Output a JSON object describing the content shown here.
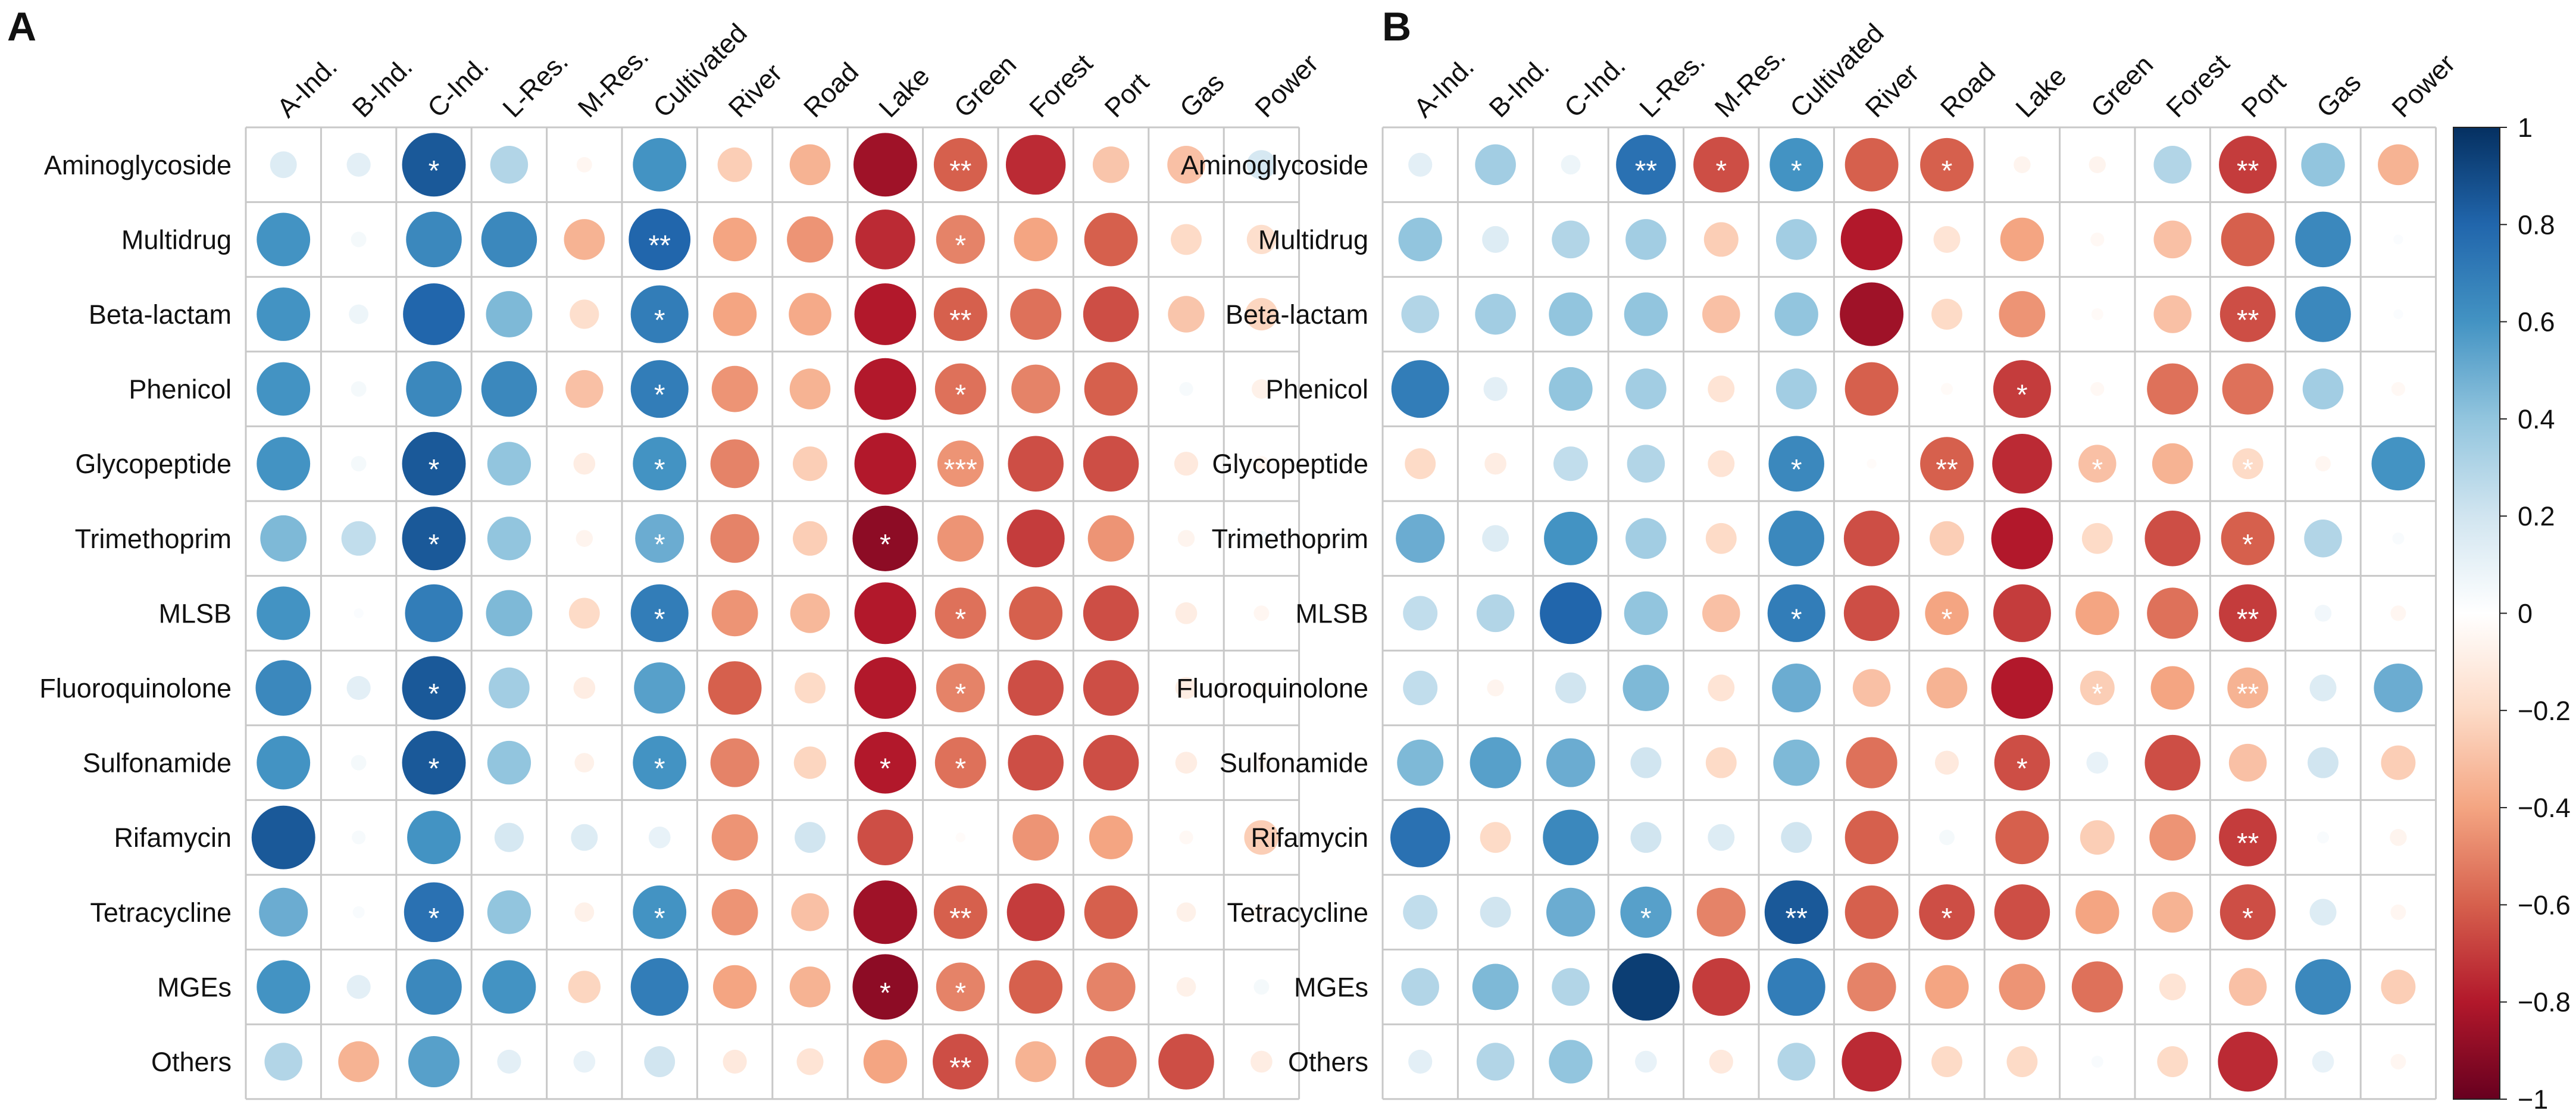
{
  "colors": {
    "scale": [
      [
        -1.0,
        "#67001f"
      ],
      [
        -0.8,
        "#b2182b"
      ],
      [
        -0.6,
        "#d6604d"
      ],
      [
        -0.4,
        "#f4a582"
      ],
      [
        -0.2,
        "#fddbc7"
      ],
      [
        0.0,
        "#ffffff"
      ],
      [
        0.2,
        "#d1e5f0"
      ],
      [
        0.4,
        "#92c5de"
      ],
      [
        0.6,
        "#4393c3"
      ],
      [
        0.8,
        "#2166ac"
      ],
      [
        1.0,
        "#053061"
      ]
    ],
    "grid": "#c8c8c8",
    "star": "#ffffff"
  },
  "chart_data": [
    {
      "type": "heatmap",
      "style": "circle-correlogram",
      "panel_label": "A",
      "rows": [
        "Aminoglycoside",
        "Multidrug",
        "Beta-lactam",
        "Phenicol",
        "Glycopeptide",
        "Trimethoprim",
        "MLSB",
        "Fluoroquinolone",
        "Sulfonamide",
        "Rifamycin",
        "Tetracycline",
        "MGEs",
        "Others"
      ],
      "columns": [
        "A-Ind.",
        "B-Ind.",
        "C-Ind.",
        "L-Res.",
        "M-Res.",
        "Cultivated",
        "River",
        "Road",
        "Lake",
        "Green",
        "Forest",
        "Port",
        "Gas",
        "Power"
      ],
      "values": [
        [
          0.15,
          0.12,
          0.85,
          0.3,
          -0.05,
          0.6,
          -0.25,
          -0.35,
          -0.85,
          -0.6,
          -0.75,
          -0.28,
          -0.3,
          0.18
        ],
        [
          0.6,
          0.05,
          0.65,
          0.65,
          -0.35,
          0.8,
          -0.4,
          -0.45,
          -0.75,
          -0.5,
          -0.4,
          -0.6,
          -0.2,
          -0.18
        ],
        [
          0.6,
          0.08,
          0.8,
          0.45,
          -0.18,
          0.7,
          -0.4,
          -0.38,
          -0.8,
          -0.6,
          -0.55,
          -0.65,
          -0.28,
          -0.22
        ],
        [
          0.6,
          0.05,
          0.65,
          0.65,
          -0.3,
          0.7,
          -0.45,
          -0.35,
          -0.8,
          -0.55,
          -0.5,
          -0.6,
          0.04,
          -0.08
        ],
        [
          0.6,
          0.05,
          0.85,
          0.4,
          -0.1,
          0.6,
          -0.5,
          -0.25,
          -0.8,
          -0.45,
          -0.65,
          -0.65,
          -0.12,
          -0.05
        ],
        [
          0.45,
          0.25,
          0.85,
          0.4,
          -0.06,
          0.5,
          -0.5,
          -0.25,
          -0.9,
          -0.45,
          -0.7,
          -0.45,
          -0.06,
          0.05
        ],
        [
          0.6,
          0.02,
          0.7,
          0.45,
          -0.2,
          0.7,
          -0.45,
          -0.33,
          -0.8,
          -0.55,
          -0.6,
          -0.65,
          -0.1,
          -0.05
        ],
        [
          0.65,
          0.12,
          0.85,
          0.35,
          -0.1,
          0.55,
          -0.6,
          -0.2,
          -0.8,
          -0.5,
          -0.65,
          -0.65,
          -0.1,
          -0.05
        ],
        [
          0.6,
          0.05,
          0.85,
          0.4,
          -0.08,
          0.6,
          -0.5,
          -0.22,
          -0.8,
          -0.55,
          -0.65,
          -0.65,
          -0.1,
          -0.05
        ],
        [
          0.85,
          0.04,
          0.6,
          0.18,
          0.15,
          0.1,
          -0.45,
          0.2,
          -0.65,
          -0.02,
          -0.45,
          -0.4,
          -0.04,
          -0.25
        ],
        [
          0.5,
          0.03,
          0.75,
          0.4,
          -0.08,
          0.6,
          -0.45,
          -0.3,
          -0.85,
          -0.6,
          -0.7,
          -0.6,
          -0.08,
          -0.05
        ],
        [
          0.6,
          0.12,
          0.65,
          0.6,
          -0.22,
          0.7,
          -0.4,
          -0.35,
          -0.9,
          -0.5,
          -0.6,
          -0.5,
          -0.08,
          0.05
        ],
        [
          0.3,
          -0.35,
          0.55,
          0.12,
          0.1,
          0.2,
          -0.12,
          -0.15,
          -0.4,
          -0.65,
          -0.35,
          -0.55,
          -0.65,
          -0.1
        ]
      ],
      "significance": [
        [
          "",
          "",
          "*",
          "",
          "",
          "",
          "",
          "",
          "",
          "**",
          "",
          "",
          "",
          ""
        ],
        [
          "",
          "",
          "",
          "",
          "",
          "**",
          "",
          "",
          "",
          "*",
          "",
          "",
          "",
          ""
        ],
        [
          "",
          "",
          "",
          "",
          "",
          "*",
          "",
          "",
          "",
          "**",
          "",
          "",
          "",
          ""
        ],
        [
          "",
          "",
          "",
          "",
          "",
          "*",
          "",
          "",
          "",
          "*",
          "",
          "",
          "",
          ""
        ],
        [
          "",
          "",
          "*",
          "",
          "",
          "*",
          "",
          "",
          "",
          "***",
          "",
          "",
          "",
          ""
        ],
        [
          "",
          "",
          "*",
          "",
          "",
          "*",
          "",
          "",
          "*",
          "",
          "",
          "",
          "",
          ""
        ],
        [
          "",
          "",
          "",
          "",
          "",
          "*",
          "",
          "",
          "",
          "*",
          "",
          "",
          "",
          ""
        ],
        [
          "",
          "",
          "*",
          "",
          "",
          "",
          "",
          "",
          "",
          "*",
          "",
          "",
          "",
          ""
        ],
        [
          "",
          "",
          "*",
          "",
          "",
          "*",
          "",
          "",
          "*",
          "*",
          "",
          "",
          "",
          ""
        ],
        [
          "",
          "",
          "",
          "",
          "",
          "",
          "",
          "",
          "",
          "",
          "",
          "",
          "",
          ""
        ],
        [
          "",
          "",
          "*",
          "",
          "",
          "*",
          "",
          "",
          "",
          "**",
          "",
          "",
          "",
          ""
        ],
        [
          "",
          "",
          "",
          "",
          "",
          "",
          "",
          "",
          "*",
          "*",
          "",
          "",
          "",
          ""
        ],
        [
          "",
          "",
          "",
          "",
          "",
          "",
          "",
          "",
          "",
          "**",
          "",
          "",
          "",
          ""
        ]
      ]
    },
    {
      "type": "heatmap",
      "style": "circle-correlogram",
      "panel_label": "B",
      "rows": [
        "Aminoglycoside",
        "Multidrug",
        "Beta-lactam",
        "Phenicol",
        "Glycopeptide",
        "Trimethoprim",
        "MLSB",
        "Fluoroquinolone",
        "Sulfonamide",
        "Rifamycin",
        "Tetracycline",
        "MGEs",
        "Others"
      ],
      "columns": [
        "A-Ind.",
        "B-Ind.",
        "C-Ind.",
        "L-Res.",
        "M-Res.",
        "Cultivated",
        "River",
        "Road",
        "Lake",
        "Green",
        "Forest",
        "Port",
        "Gas",
        "Power"
      ],
      "values": [
        [
          0.12,
          0.35,
          0.08,
          0.75,
          -0.65,
          0.6,
          -0.6,
          -0.6,
          -0.06,
          -0.06,
          0.3,
          -0.7,
          0.4,
          -0.35
        ],
        [
          0.4,
          0.15,
          0.3,
          0.35,
          -0.25,
          0.35,
          -0.8,
          -0.15,
          -0.4,
          -0.04,
          -0.3,
          -0.6,
          0.65,
          0.02
        ],
        [
          0.3,
          0.35,
          0.4,
          0.4,
          -0.3,
          0.4,
          -0.85,
          -0.2,
          -0.45,
          -0.03,
          -0.3,
          -0.65,
          0.65,
          0.02
        ],
        [
          0.7,
          0.12,
          0.4,
          0.35,
          -0.15,
          0.35,
          -0.6,
          -0.03,
          -0.7,
          -0.04,
          -0.55,
          -0.55,
          0.35,
          -0.04
        ],
        [
          -0.2,
          -0.1,
          0.25,
          0.3,
          -0.15,
          0.65,
          -0.02,
          -0.6,
          -0.75,
          -0.3,
          -0.35,
          -0.2,
          -0.05,
          0.6
        ],
        [
          0.5,
          0.15,
          0.6,
          0.35,
          -0.2,
          0.65,
          -0.65,
          -0.25,
          -0.8,
          -0.2,
          -0.65,
          -0.6,
          0.3,
          0.03
        ],
        [
          0.25,
          0.3,
          0.8,
          0.4,
          -0.3,
          0.7,
          -0.65,
          -0.4,
          -0.7,
          -0.4,
          -0.55,
          -0.7,
          0.06,
          -0.05
        ],
        [
          0.25,
          -0.06,
          0.2,
          0.45,
          -0.15,
          0.5,
          -0.3,
          -0.35,
          -0.8,
          -0.25,
          -0.4,
          -0.35,
          0.15,
          0.5
        ],
        [
          0.45,
          0.55,
          0.5,
          0.2,
          -0.2,
          0.45,
          -0.55,
          -0.12,
          -0.65,
          0.1,
          -0.65,
          -0.3,
          0.2,
          -0.25
        ],
        [
          0.75,
          -0.2,
          0.65,
          0.2,
          0.15,
          0.2,
          -0.6,
          0.05,
          -0.6,
          -0.25,
          -0.45,
          -0.7,
          0.03,
          -0.06
        ],
        [
          0.25,
          0.2,
          0.5,
          0.55,
          -0.5,
          0.85,
          -0.6,
          -0.65,
          -0.65,
          -0.4,
          -0.35,
          -0.65,
          0.15,
          -0.05
        ],
        [
          0.3,
          0.45,
          0.3,
          0.95,
          -0.7,
          0.7,
          -0.5,
          -0.4,
          -0.45,
          -0.55,
          -0.15,
          -0.3,
          0.65,
          -0.25
        ],
        [
          0.12,
          0.3,
          0.4,
          0.1,
          -0.12,
          0.3,
          -0.75,
          -0.2,
          -0.2,
          0.03,
          -0.2,
          -0.75,
          0.1,
          -0.05
        ]
      ],
      "significance": [
        [
          "",
          "",
          "",
          "**",
          "*",
          "*",
          "",
          "*",
          "",
          "",
          "",
          "**",
          "",
          ""
        ],
        [
          "",
          "",
          "",
          "",
          "",
          "",
          "",
          "",
          "",
          "",
          "",
          "",
          "",
          ""
        ],
        [
          "",
          "",
          "",
          "",
          "",
          "",
          "",
          "",
          "",
          "",
          "",
          "**",
          "",
          ""
        ],
        [
          "",
          "",
          "",
          "",
          "",
          "",
          "",
          "",
          "*",
          "",
          "",
          "",
          "",
          ""
        ],
        [
          "",
          "",
          "",
          "",
          "",
          "*",
          "",
          "**",
          "",
          "*",
          "",
          "*",
          "",
          ""
        ],
        [
          "",
          "",
          "",
          "",
          "",
          "",
          "",
          "",
          "",
          "",
          "",
          "*",
          "",
          ""
        ],
        [
          "",
          "",
          "",
          "",
          "",
          "*",
          "",
          "*",
          "",
          "",
          "",
          "**",
          "",
          ""
        ],
        [
          "",
          "",
          "",
          "",
          "",
          "",
          "",
          "",
          "",
          "*",
          "",
          "**",
          "",
          ""
        ],
        [
          "",
          "",
          "",
          "",
          "",
          "",
          "",
          "",
          "*",
          "",
          "",
          "",
          "",
          ""
        ],
        [
          "",
          "",
          "",
          "",
          "",
          "",
          "",
          "",
          "",
          "",
          "",
          "**",
          "",
          ""
        ],
        [
          "",
          "",
          "",
          "*",
          "",
          "**",
          "",
          "*",
          "",
          "",
          "",
          "*",
          "",
          ""
        ],
        [
          "",
          "",
          "",
          "",
          "",
          "",
          "",
          "",
          "",
          "",
          "",
          "",
          "",
          ""
        ],
        [
          "",
          "",
          "",
          "",
          "",
          "",
          "",
          "",
          "",
          "",
          "",
          "",
          "",
          ""
        ]
      ]
    }
  ],
  "colorbar": {
    "ticks": [
      1,
      0.8,
      0.6,
      0.4,
      0.2,
      0,
      -0.2,
      -0.4,
      -0.6,
      -0.8,
      -1
    ],
    "tick_labels": [
      "1",
      "0.8",
      "0.6",
      "0.4",
      "0.2",
      "0",
      "−0.2",
      "−0.4",
      "−0.6",
      "−0.8",
      "−1"
    ],
    "range": [
      -1,
      1
    ]
  }
}
